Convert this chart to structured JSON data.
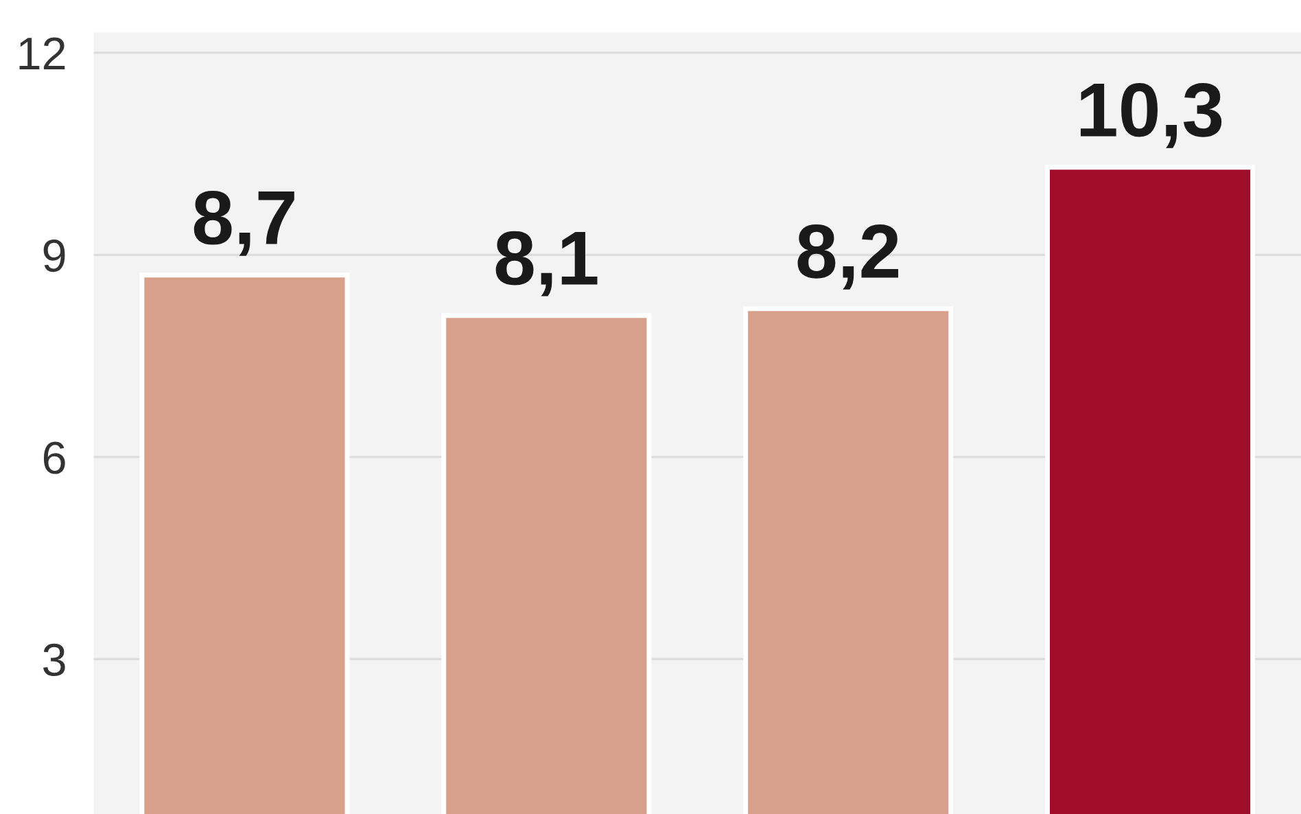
{
  "chart_data": {
    "type": "bar",
    "categories": [
      null,
      null,
      null,
      null
    ],
    "values": [
      8.7,
      8.1,
      8.2,
      10.3
    ],
    "colors": [
      "#d8a08b",
      "#d8a08b",
      "#d8a08b",
      "#a00d29"
    ],
    "value_labels": [
      "8,7",
      "8,1",
      "8,2",
      "10,3"
    ],
    "ylim": [
      0.7,
      12.3
    ],
    "yticks": [
      3,
      6,
      9,
      12
    ],
    "grid": "y",
    "legend": false
  }
}
